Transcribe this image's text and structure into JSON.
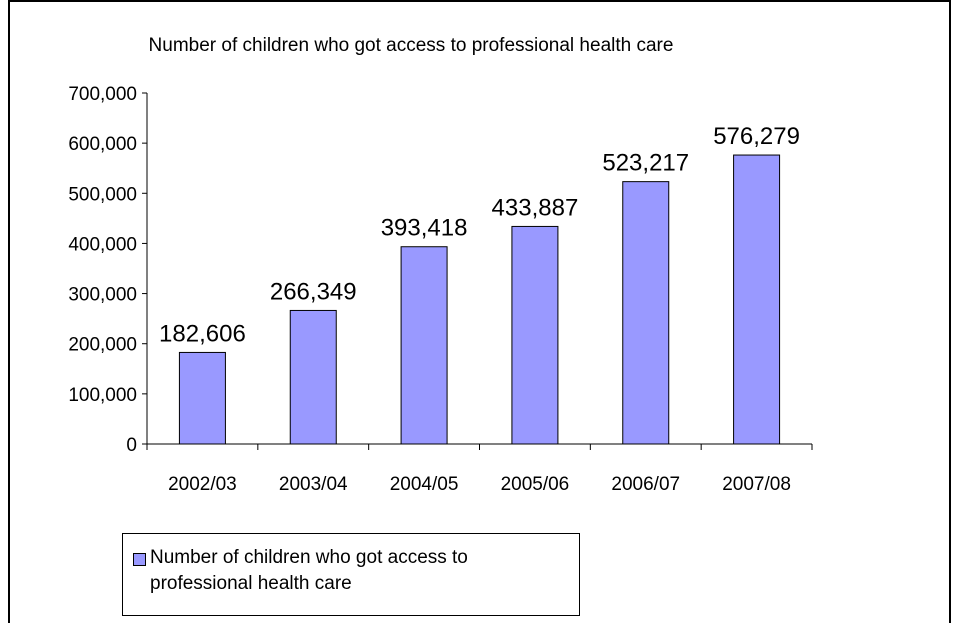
{
  "chart_data": {
    "type": "bar",
    "title": "Number of children who got access to professional health care",
    "categories": [
      "2002/03",
      "2003/04",
      "2004/05",
      "2005/06",
      "2006/07",
      "2007/08"
    ],
    "values": [
      182606,
      266349,
      393418,
      433887,
      523217,
      576279
    ],
    "value_labels": [
      "182,606",
      "266,349",
      "393,418",
      "433,887",
      "523,217",
      "576,279"
    ],
    "y_ticks": [
      "0",
      "100,000",
      "200,000",
      "300,000",
      "400,000",
      "500,000",
      "600,000",
      "700,000"
    ],
    "ylim": [
      0,
      700000
    ],
    "xlabel": "",
    "ylabel": "",
    "grid": false,
    "legend_placement": "bottom-left",
    "series": [
      {
        "name": "Number of children who got access to professional health care",
        "values": [
          182606,
          266349,
          393418,
          433887,
          523217,
          576279
        ]
      }
    ],
    "colors": {
      "bar": "#9999ff",
      "bar_border": "#000000",
      "axis": "#000000"
    }
  }
}
